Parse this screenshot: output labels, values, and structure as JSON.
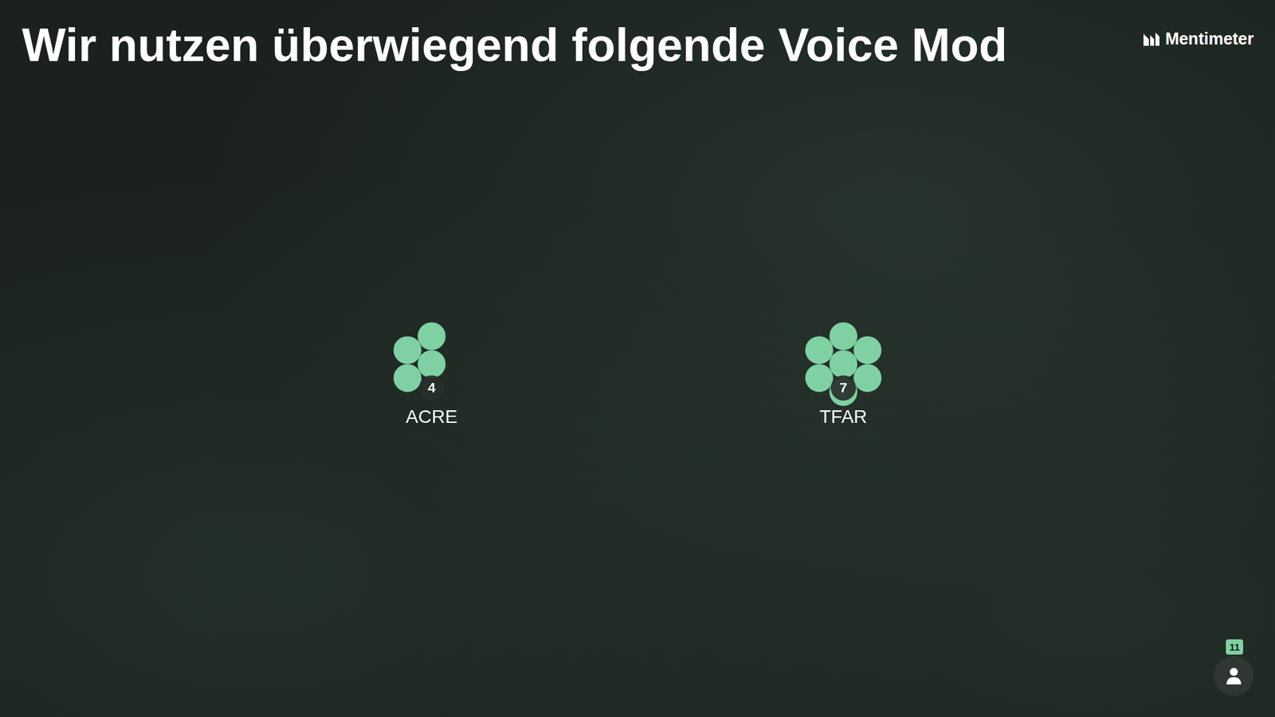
{
  "brand": "Mentimeter",
  "participants": 11,
  "chart_data": {
    "type": "dot",
    "title": "Wir nutzen überwiegend folgende Voice Mod",
    "categories": [
      "ACRE",
      "TFAR"
    ],
    "values": [
      4,
      7
    ],
    "color": "#7fd1a3",
    "data_labels": true
  }
}
